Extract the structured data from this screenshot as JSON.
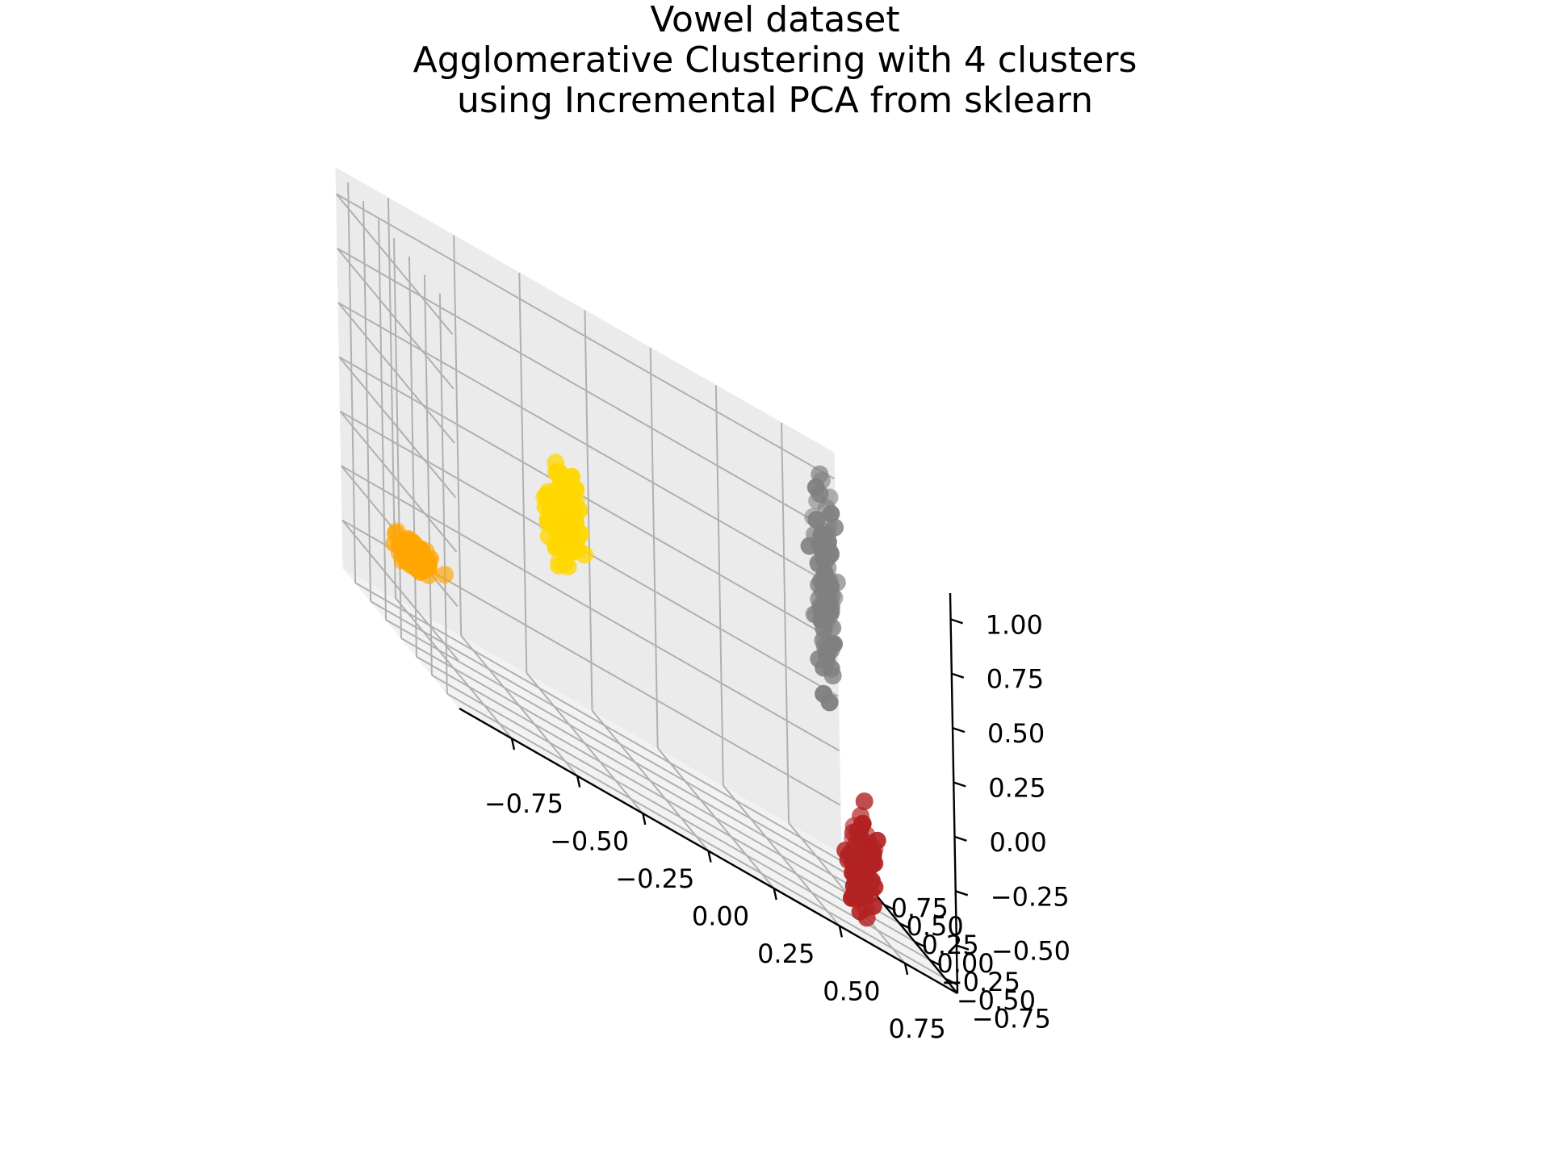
{
  "chart_data": {
    "type": "scatter3d",
    "title": [
      "Vowel dataset",
      "Agglomerative Clustering with 4 clusters",
      "using Incremental PCA from sklearn"
    ],
    "xlabel": "",
    "ylabel": "",
    "zlabel": "",
    "x_ticks": [
      "−0.75",
      "−0.50",
      "−0.25",
      "0.00",
      "0.25",
      "0.50",
      "0.75"
    ],
    "y_ticks": [
      "−0.75",
      "−0.50",
      "−0.25",
      "0.00",
      "0.25",
      "0.50",
      "0.75"
    ],
    "z_ticks": [
      "−0.50",
      "−0.25",
      "0.00",
      "0.25",
      "0.50",
      "0.75",
      "1.00"
    ],
    "xlim": [
      -0.95,
      0.95
    ],
    "ylim": [
      -0.95,
      0.95
    ],
    "zlim": [
      -0.72,
      1.12
    ],
    "grid": true,
    "series": [
      {
        "color": "#ffa500",
        "center": [
          -0.9,
          -0.05,
          -0.3
        ],
        "spread": [
          0.05,
          0.05,
          0.06
        ],
        "count": 60
      },
      {
        "color": "#ffd700",
        "center": [
          -0.5,
          -0.8,
          0.4
        ],
        "spread": [
          0.05,
          0.05,
          0.18
        ],
        "count": 110
      },
      {
        "color": "#b22222",
        "center": [
          0.75,
          -0.25,
          -0.5
        ],
        "spread": [
          0.04,
          0.04,
          0.18
        ],
        "count": 110
      },
      {
        "color": "#808080",
        "center": [
          0.78,
          0.4,
          0.6
        ],
        "spread": [
          0.03,
          0.04,
          0.4
        ],
        "count": 90
      }
    ]
  }
}
